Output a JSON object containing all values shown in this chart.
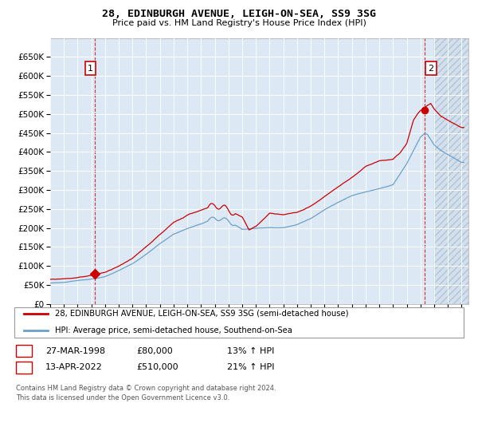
{
  "title": "28, EDINBURGH AVENUE, LEIGH-ON-SEA, SS9 3SG",
  "subtitle": "Price paid vs. HM Land Registry's House Price Index (HPI)",
  "legend_line1": "28, EDINBURGH AVENUE, LEIGH-ON-SEA, SS9 3SG (semi-detached house)",
  "legend_line2": "HPI: Average price, semi-detached house, Southend-on-Sea",
  "annotation1_date": "27-MAR-1998",
  "annotation1_price": "£80,000",
  "annotation1_hpi": "13% ↑ HPI",
  "annotation2_date": "13-APR-2022",
  "annotation2_price": "£510,000",
  "annotation2_hpi": "21% ↑ HPI",
  "footer1": "Contains HM Land Registry data © Crown copyright and database right 2024.",
  "footer2": "This data is licensed under the Open Government Licence v3.0.",
  "red_color": "#cc0000",
  "blue_color": "#6ca0c8",
  "background_color": "#dce9f5",
  "hatch_color": "#c8d8e8",
  "ylim": [
    0,
    700000
  ],
  "yticks": [
    0,
    50000,
    100000,
    150000,
    200000,
    250000,
    300000,
    350000,
    400000,
    450000,
    500000,
    550000,
    600000,
    650000
  ],
  "xmin": 1995.0,
  "xmax": 2025.5,
  "hatch_start": 2023.0,
  "sale1_year": 1998.23,
  "sale1_price": 80000,
  "sale2_year": 2022.28,
  "sale2_price": 510000
}
